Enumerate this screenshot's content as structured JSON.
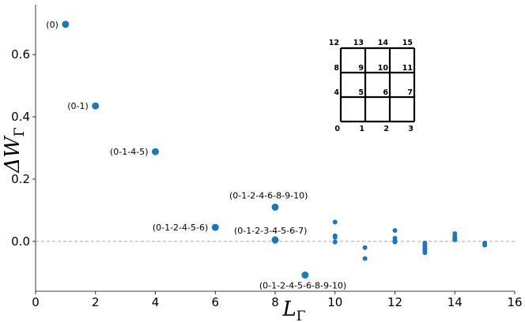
{
  "chart_data": {
    "type": "scatter",
    "xlabel": "L",
    "xlabel_sub": "Γ",
    "ylabel": "ΔW",
    "ylabel_sub": "Γ",
    "xlim": [
      0,
      16
    ],
    "ylim": [
      -0.16,
      0.76
    ],
    "x_ticks": [
      0,
      2,
      4,
      6,
      8,
      10,
      12,
      14,
      16
    ],
    "y_ticks": [
      0.0,
      0.2,
      0.4,
      0.6
    ],
    "y_tick_labels": [
      "0.0",
      "0.2",
      "0.4",
      "0.6"
    ],
    "reference_line": {
      "y": 0,
      "style": "dashed",
      "color": "#aaaaaa"
    },
    "grid": false,
    "marker_color": "#1f77b4",
    "labeled_points": [
      {
        "x": 1,
        "y": 0.697,
        "label": "(0)"
      },
      {
        "x": 2,
        "y": 0.435,
        "label": "(0-1)"
      },
      {
        "x": 4,
        "y": 0.288,
        "label": "(0-1-4-5)"
      },
      {
        "x": 6,
        "y": 0.045,
        "label": "(0-1-2-4-5-6)"
      },
      {
        "x": 8,
        "y": 0.11,
        "label": "(0-1-2-4-6-8-9-10)"
      },
      {
        "x": 8,
        "y": 0.005,
        "label": "(0-1-2-3-4-5-6-7)"
      },
      {
        "x": 9,
        "y": -0.108,
        "label": "(0-1-2-4-5-6-8-9-10)"
      }
    ],
    "points": [
      {
        "x": 8,
        "y": 0.0
      },
      {
        "x": 10,
        "y": 0.062
      },
      {
        "x": 10,
        "y": 0.018
      },
      {
        "x": 10,
        "y": 0.013
      },
      {
        "x": 10,
        "y": -0.002
      },
      {
        "x": 11,
        "y": -0.02
      },
      {
        "x": 11,
        "y": -0.055
      },
      {
        "x": 12,
        "y": 0.035
      },
      {
        "x": 12,
        "y": 0.01
      },
      {
        "x": 12,
        "y": 0.002
      },
      {
        "x": 12,
        "y": -0.002
      },
      {
        "x": 13,
        "y": -0.005
      },
      {
        "x": 13,
        "y": -0.012
      },
      {
        "x": 13,
        "y": -0.018
      },
      {
        "x": 13,
        "y": -0.023
      },
      {
        "x": 13,
        "y": -0.028
      },
      {
        "x": 13,
        "y": -0.036
      },
      {
        "x": 14,
        "y": 0.025
      },
      {
        "x": 14,
        "y": 0.015
      },
      {
        "x": 14,
        "y": 0.01
      },
      {
        "x": 14,
        "y": 0.005
      },
      {
        "x": 15,
        "y": -0.005
      },
      {
        "x": 15,
        "y": -0.012
      }
    ],
    "inset_lattice": {
      "rows": [
        [
          "12",
          "13",
          "14",
          "15"
        ],
        [
          "8",
          "9",
          "10",
          "11"
        ],
        [
          "4",
          "5",
          "6",
          "7"
        ],
        [
          "0",
          "1",
          "2",
          "3"
        ]
      ]
    }
  }
}
